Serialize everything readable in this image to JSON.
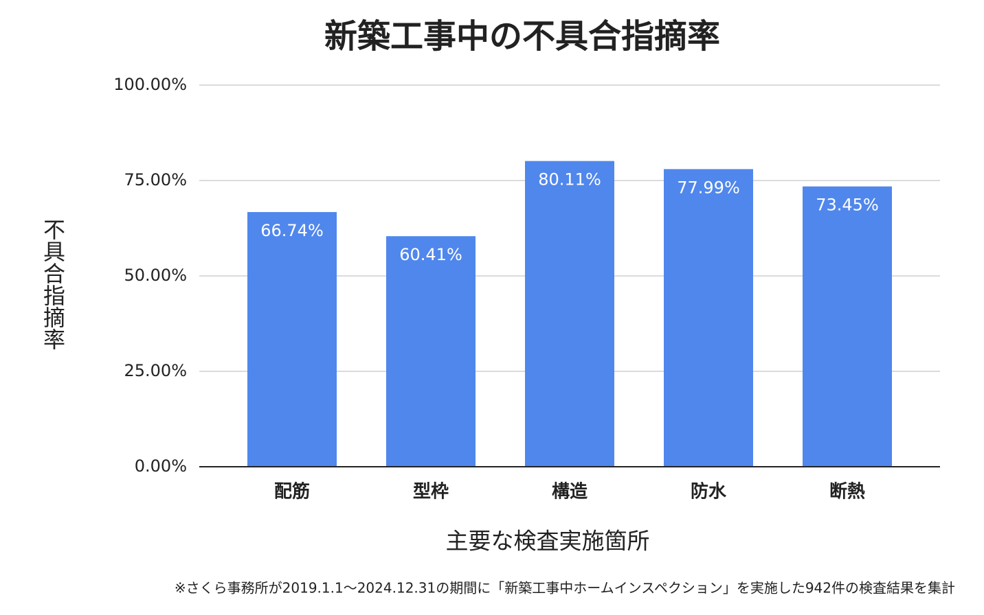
{
  "chart_data": {
    "type": "bar",
    "title": "新築工事中の不具合指摘率",
    "categories": [
      "配筋",
      "型枠",
      "構造",
      "防水",
      "断熱"
    ],
    "values": [
      66.74,
      60.41,
      80.11,
      77.99,
      73.45
    ],
    "value_labels": [
      "66.74%",
      "60.41%",
      "80.11%",
      "77.99%",
      "73.45%"
    ],
    "color": "#5087ec",
    "ylim": [
      0,
      100
    ],
    "yticks": [
      {
        "value": 0,
        "label": "0.00%"
      },
      {
        "value": 25,
        "label": "25.00%"
      },
      {
        "value": 50,
        "label": "50.00%"
      },
      {
        "value": 75,
        "label": "75.00%"
      },
      {
        "value": 100,
        "label": "100.00%"
      }
    ],
    "grid": true,
    "xlabel": "主要な検査実施箇所",
    "ylabel": "不具合指摘率",
    "footnote": "※さくら事務所が2019.1.1〜2024.12.31の期間に「新築工事中ホームインスペクション」を実施した942件の検査結果を集計"
  }
}
